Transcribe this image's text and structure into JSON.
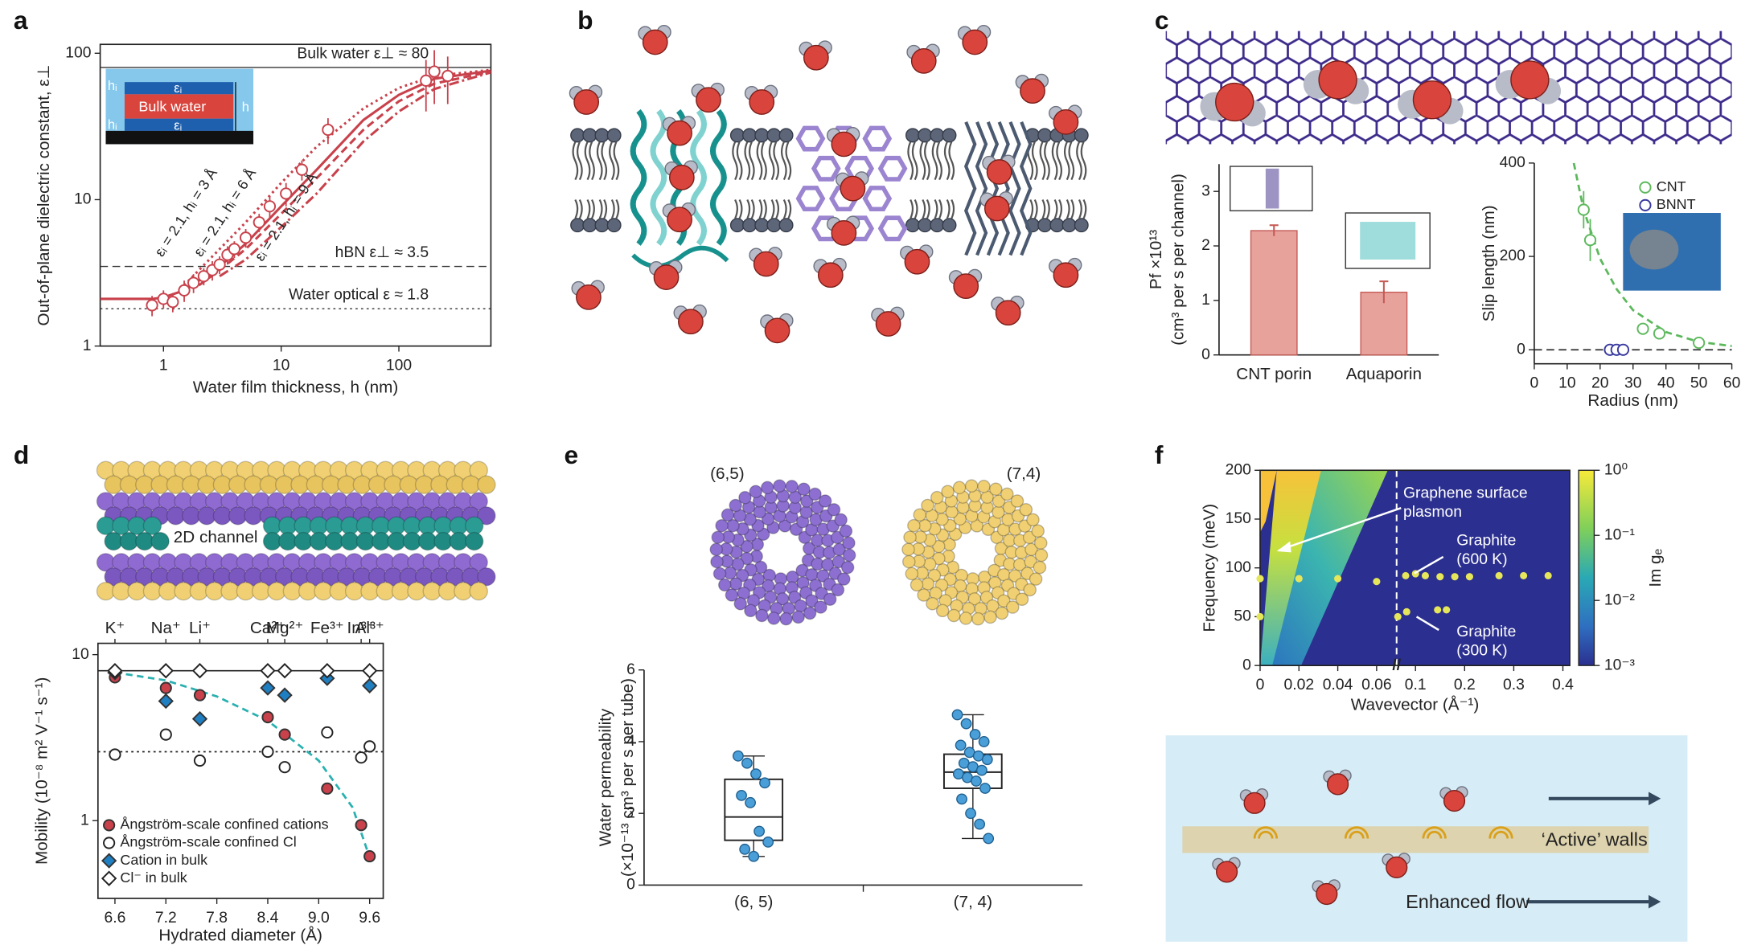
{
  "panel_labels": [
    "a",
    "b",
    "c",
    "d",
    "e",
    "f"
  ],
  "diagrams": {
    "channel": "2D channel",
    "walls": "‘Active’ walls",
    "flow": "Enhanced flow"
  },
  "chart_data": [
    {
      "type": "line",
      "xlabel": "Water film thickness, h (nm)",
      "ylabel": "Out-of-plane dielectric constant, ε⊥",
      "xlog": true,
      "ylog": true,
      "xlim": [
        0.29,
        605
      ],
      "ylim": [
        1,
        115
      ],
      "xticks": [
        1,
        10,
        100
      ],
      "yticks": [
        1,
        10,
        100
      ],
      "color": "#c8414b",
      "hlines": [
        {
          "value": 80,
          "style": "solid",
          "label": "Bulk water ε⊥ ≈ 80"
        },
        {
          "value": 3.5,
          "style": "dashed",
          "label": "hBN ε⊥ ≈ 3.5"
        },
        {
          "value": 1.8,
          "style": "dotted",
          "label": "Water optical ε ≈ 1.8"
        }
      ],
      "curves": [
        {
          "style": "solid",
          "x": [
            0.29,
            0.8,
            1,
            1.5,
            2,
            3,
            5,
            10,
            20,
            50,
            100,
            200,
            605
          ],
          "values": [
            2.1,
            2.1,
            2.15,
            2.4,
            2.8,
            3.5,
            5,
            9,
            16,
            35,
            52,
            67,
            76
          ]
        },
        {
          "style": "dotted",
          "label": "εᵢ = 2.1, hᵢ = 3 Å",
          "x": [
            1.5,
            2,
            3,
            5,
            10,
            20,
            50,
            100,
            200,
            605
          ],
          "values": [
            2.6,
            3.3,
            4.6,
            7,
            13,
            23,
            42,
            58,
            70,
            77
          ]
        },
        {
          "style": "dashed",
          "label": "εᵢ = 2.1, hᵢ = 6 Å",
          "x": [
            2,
            3,
            5,
            10,
            20,
            50,
            100,
            200,
            605
          ],
          "values": [
            2.6,
            3.3,
            4.6,
            8,
            14,
            30,
            47,
            62,
            75
          ]
        },
        {
          "style": "dashdot",
          "label": "εᵢ = 2.1, hᵢ = 9 Å",
          "x": [
            3,
            5,
            10,
            20,
            50,
            100,
            200,
            605
          ],
          "values": [
            3.0,
            3.9,
            6.5,
            11,
            25,
            40,
            57,
            74
          ]
        }
      ],
      "points": {
        "x": [
          0.8,
          1.0,
          1.2,
          1.5,
          1.8,
          2.2,
          2.6,
          3.0,
          3.5,
          4.0,
          5.0,
          6.5,
          8.0,
          11,
          15,
          25,
          170,
          200,
          260
        ],
        "values": [
          1.9,
          2.1,
          2.0,
          2.4,
          2.7,
          3.0,
          3.3,
          3.6,
          4.2,
          4.6,
          5.5,
          7.0,
          9.0,
          11,
          16,
          30,
          65,
          75,
          70
        ],
        "errors": [
          0.3,
          0.3,
          0.3,
          0.4,
          0.4,
          0.4,
          0.5,
          0.5,
          0.6,
          0.6,
          0.8,
          1,
          1.5,
          2,
          2.5,
          6,
          25,
          30,
          25
        ]
      },
      "inset": {
        "bulk": "Bulk water",
        "eps": "εᵢ",
        "hi": "hᵢ",
        "h": "h"
      }
    },
    {
      "type": "bar",
      "categories": [
        "CNT porin",
        "Aquaporin"
      ],
      "values": [
        2.28,
        1.15
      ],
      "errors": [
        0.1,
        0.2
      ],
      "color": "#e8a29c",
      "edge": "#c55a55",
      "ylim": [
        0,
        3.5
      ],
      "yticks": [
        0,
        1,
        2,
        3
      ],
      "ylabel": "Pf ×10¹³",
      "ylabel2": "(cm³ per s per channel)"
    },
    {
      "type": "scatter",
      "xlabel": "Radius (nm)",
      "ylabel": "Slip length (nm)",
      "xlim": [
        0,
        60
      ],
      "ylim": [
        -30,
        400
      ],
      "xticks": [
        0,
        10,
        20,
        30,
        40,
        50,
        60
      ],
      "yticks": [
        0,
        200,
        400
      ],
      "legend": "upper right",
      "series": [
        {
          "name": "CNT",
          "color": "#5cb85c",
          "marker": "circle-open",
          "x": [
            15,
            17,
            33,
            38,
            50
          ],
          "values": [
            300,
            235,
            45,
            35,
            15
          ],
          "errors": [
            40,
            45,
            8,
            8,
            5
          ]
        },
        {
          "name": "BNNT",
          "color": "#3a3aa0",
          "marker": "circle-open",
          "x": [
            23,
            25,
            27
          ],
          "values": [
            0,
            0,
            0
          ]
        }
      ],
      "fit": {
        "color": "#5cb85c",
        "x": [
          12,
          15,
          20,
          25,
          30,
          40,
          50,
          60
        ],
        "values": [
          400,
          300,
          195,
          130,
          85,
          38,
          17,
          8
        ]
      },
      "hlines": [
        {
          "value": 0,
          "style": "dashed"
        }
      ]
    },
    {
      "type": "scatter",
      "xlabel": "Hydrated diameter (Å)",
      "ylabel": "Mobility (10⁻⁸ m² V⁻¹ s⁻¹)",
      "ylog": true,
      "xlim": [
        6.4,
        9.76
      ],
      "ylim": [
        0.34,
        11.7
      ],
      "xticks": [
        6.6,
        7.2,
        7.8,
        8.4,
        {
          "value": 9,
          "label": "9.0"
        },
        9.6
      ],
      "yticks": [
        1,
        10
      ],
      "legend": "lower left",
      "top_labels": [
        "K⁺",
        "Na⁺",
        "Li⁺",
        "Ca²⁺",
        "Mg²⁺",
        "Fe³⁺",
        "In³⁺",
        "Al³⁺"
      ],
      "top_x": [
        6.6,
        7.2,
        7.6,
        8.4,
        8.6,
        9.1,
        9.5,
        9.6
      ],
      "series": [
        {
          "name": "Ångström-scale confined cations",
          "color": "#c8414b",
          "marker": "circle-filled",
          "x": [
            6.6,
            7.2,
            7.6,
            8.4,
            8.6,
            9.1,
            9.5,
            9.6
          ],
          "values": [
            7.3,
            6.3,
            5.7,
            4.2,
            3.3,
            1.56,
            0.94,
            0.61
          ]
        },
        {
          "name": "Ångström-scale confined Cl",
          "color": "#222222",
          "marker": "circle-open",
          "x": [
            6.6,
            7.2,
            7.6,
            8.4,
            8.6,
            9.1,
            9.5,
            9.6
          ],
          "values": [
            2.5,
            3.3,
            2.3,
            2.6,
            2.1,
            3.4,
            2.4,
            2.8
          ]
        },
        {
          "name": "Cation in bulk",
          "color": "#1f7fc1",
          "marker": "diamond-filled",
          "x": [
            6.6,
            7.2,
            7.6,
            8.4,
            8.6,
            9.1,
            9.6
          ],
          "values": [
            7.8,
            5.25,
            4.1,
            6.3,
            5.7,
            7.2,
            6.5
          ]
        },
        {
          "name": "Cl⁻ in bulk",
          "color": "#222222",
          "marker": "diamond-open",
          "x": [
            6.6,
            7.2,
            7.6,
            8.4,
            8.6,
            9.1,
            9.6
          ],
          "values": [
            8.0,
            8.0,
            8.0,
            8.0,
            8.0,
            8.0,
            8.0
          ]
        }
      ],
      "fit": {
        "color": "#2ab0b0",
        "x": [
          6.6,
          7.2,
          7.8,
          8.4,
          9.0,
          9.4,
          9.6
        ],
        "values": [
          7.8,
          7.0,
          5.6,
          4.0,
          2.3,
          1.2,
          0.6
        ]
      },
      "hlines": [
        {
          "value": 8,
          "style": "solid"
        },
        {
          "value": 2.6,
          "style": "dotted"
        }
      ]
    },
    {
      "type": "box",
      "categories": [
        "(6, 5)",
        "(7, 4)"
      ],
      "labels": [
        "(6,5)",
        "(7,4)"
      ],
      "ylabel": "Water permeability",
      "ylabel2": "(×10⁻¹³ cm³ per s per tube)",
      "ylim": [
        0,
        6
      ],
      "yticks": [
        0,
        2,
        4,
        6
      ],
      "color": "#4a9fd8",
      "boxes": [
        {
          "low": 0.8,
          "q1": 1.25,
          "median": 1.9,
          "q3": 2.95,
          "high": 3.6
        },
        {
          "low": 1.3,
          "q1": 2.7,
          "median": 3.15,
          "q3": 3.65,
          "high": 4.75
        }
      ],
      "points": [
        [
          3.6,
          3.4,
          3.1,
          2.85,
          2.5,
          2.3,
          1.5,
          1.2,
          1.0,
          0.8
        ],
        [
          4.75,
          4.5,
          4.2,
          4.0,
          3.9,
          3.7,
          3.6,
          3.5,
          3.4,
          3.3,
          3.2,
          3.1,
          3.0,
          2.9,
          2.7,
          2.4,
          2.0,
          1.7,
          1.3
        ]
      ]
    },
    {
      "type": "heatmap",
      "xlabel": "Wavevector (Å⁻¹)",
      "ylabel": "Frequency (meV)",
      "xlim": [
        [
          0,
          0.0703
        ],
        [
          0.0616,
          0.414
        ]
      ],
      "xticks": [
        [
          0,
          0.02,
          0.04,
          0.06
        ],
        [
          0.1,
          0.2,
          0.3,
          0.4
        ]
      ],
      "ylim": [
        0,
        200
      ],
      "yticks": [
        0,
        50,
        100,
        150,
        200
      ],
      "annotation": [
        "Graphene surface",
        "plasmon"
      ],
      "points": [
        {
          "label": [
            "Graphite",
            "(600 K)"
          ],
          "color": "#e6e65a",
          "x": [
            0,
            0.02,
            0.04,
            0.06,
            0.08,
            0.1,
            0.12,
            0.15,
            0.18,
            0.21,
            0.27,
            0.32,
            0.37
          ],
          "values": [
            89,
            89,
            89,
            86,
            92,
            94,
            92,
            91,
            91,
            91,
            92,
            92,
            92
          ]
        },
        {
          "label": [
            "Graphite",
            "(300 K)"
          ],
          "color": "#e6e65a",
          "x": [
            0,
            0.064,
            0.082,
            0.145,
            0.163
          ],
          "values": [
            50,
            50,
            55,
            57,
            57
          ]
        }
      ],
      "colorbar": {
        "label": "Im gₑ",
        "log": true,
        "lim": [
          0.001,
          1
        ],
        "ticks": [
          {
            "value": 1,
            "label": "10⁰"
          },
          {
            "value": 0.1,
            "label": "10⁻¹"
          },
          {
            "value": 0.01,
            "label": "10⁻²"
          },
          {
            "value": 0.001,
            "label": "10⁻³"
          }
        ]
      }
    }
  ]
}
